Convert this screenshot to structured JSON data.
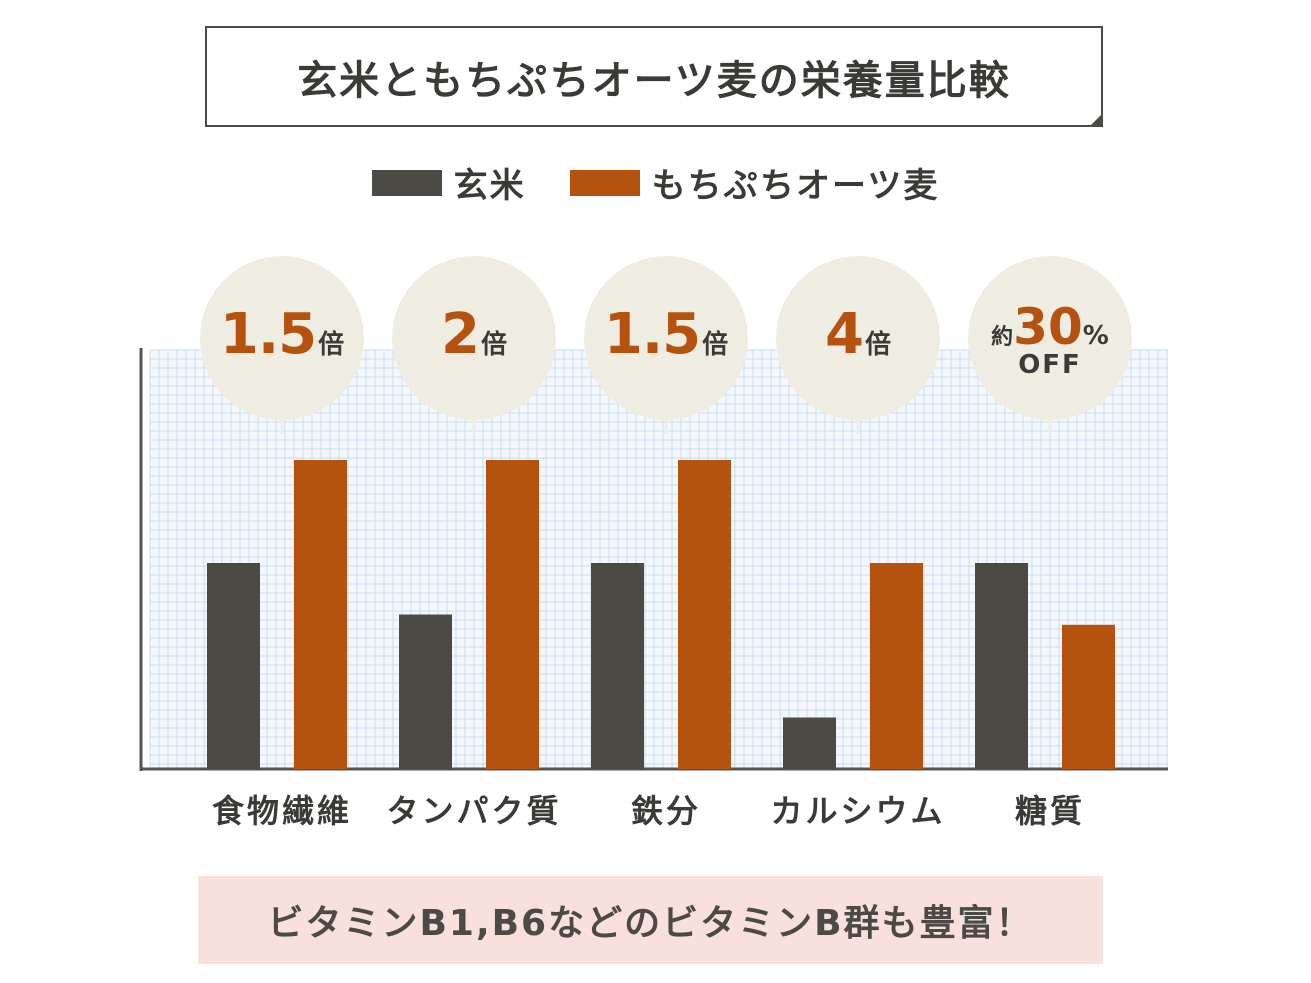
{
  "title": "玄米ともちぷちオーツ麦の栄養量比較",
  "colors": {
    "genmai": "#4b4a45",
    "oats": "#b6520f",
    "grid": "#c9dcee",
    "badge_bg": "#efede2",
    "note_bg": "#f8e1dc"
  },
  "chart_data": {
    "type": "bar",
    "title": "玄米ともちぷちオーツ麦の栄養量比較",
    "categories": [
      "食物繊維",
      "タンパク質",
      "鉄分",
      "カルシウム",
      "糖質"
    ],
    "series": [
      {
        "name": "玄米",
        "values": [
          1.0,
          0.75,
          1.0,
          0.25,
          1.0
        ]
      },
      {
        "name": "もちぷちオーツ麦",
        "values": [
          1.5,
          1.5,
          1.5,
          1.0,
          0.7
        ]
      }
    ],
    "ylim": [
      0,
      1.5
    ],
    "xlabel": "",
    "ylabel": "",
    "grid": true,
    "legend": "top-center",
    "annotations": [
      {
        "num": "1.5",
        "unit": "倍"
      },
      {
        "num": "2",
        "unit": "倍"
      },
      {
        "num": "1.5",
        "unit": "倍"
      },
      {
        "num": "4",
        "unit": "倍"
      },
      {
        "prefix": "約",
        "num": "30",
        "unit": "%",
        "sub": "OFF"
      }
    ]
  },
  "note": "ビタミンB1,B6などのビタミンB群も豊富！"
}
